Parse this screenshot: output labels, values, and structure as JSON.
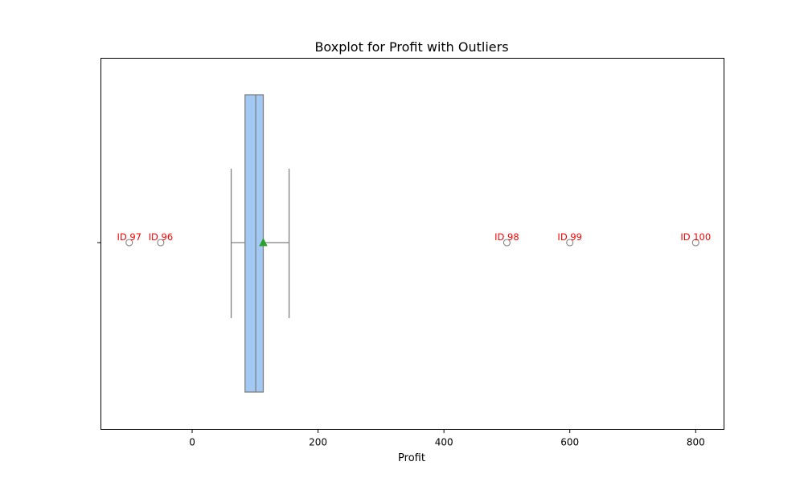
{
  "chart_data": {
    "type": "boxplot",
    "title": "Boxplot for Profit with Outliers",
    "xlabel": "Profit",
    "ylabel": "",
    "xlim": [
      -145,
      845
    ],
    "xticks": [
      0,
      200,
      400,
      600,
      800
    ],
    "grid": false,
    "legend": "none",
    "box": {
      "whisker_low": 62,
      "q1": 84,
      "median": 101,
      "q3": 113,
      "whisker_high": 154,
      "mean": 113
    },
    "outliers": [
      {
        "label": "ID 97",
        "value": -100
      },
      {
        "label": "ID 96",
        "value": -50
      },
      {
        "label": "ID 98",
        "value": 500
      },
      {
        "label": "ID 99",
        "value": 600
      },
      {
        "label": "ID 100",
        "value": 800
      }
    ],
    "colors": {
      "box_fill": "#a1c9f4",
      "box_edge": "#808080",
      "mean_marker": "#2ca02c",
      "outlier_label": "#ff0000"
    }
  }
}
